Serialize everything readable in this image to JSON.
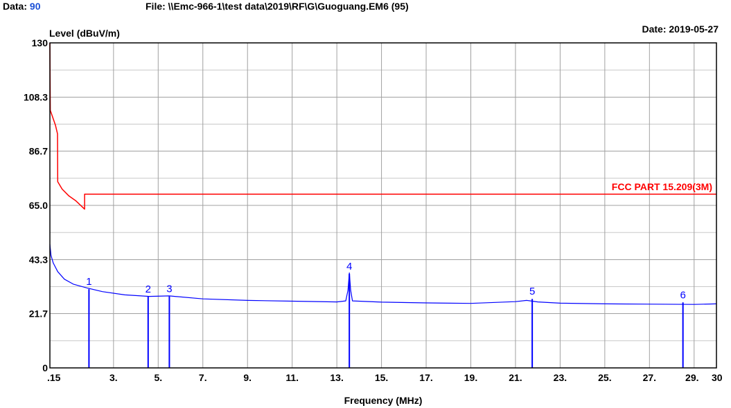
{
  "header": {
    "data_label": "Data:",
    "data_value": "90",
    "file_text": "File: \\\\Emc-966-1\\test data\\2019\\RF\\G\\Guoguang.EM6  (95)",
    "date_text": "Date: 2019-05-27"
  },
  "colors": {
    "limit": "#ff0000",
    "trace": "#0000ff",
    "grid": "#a0a0a0",
    "accent": "#1a4fd6"
  },
  "chart_data": {
    "type": "line",
    "ylabel": "Level (dBuV/m)",
    "xlabel": "Frequency (MHz)",
    "xlim": [
      0.15,
      30
    ],
    "ylim": [
      0,
      130
    ],
    "grid": true,
    "x_ticks": [
      {
        "value": 0.15,
        "label": ".15"
      },
      {
        "value": 3,
        "label": "3."
      },
      {
        "value": 5,
        "label": "5."
      },
      {
        "value": 7,
        "label": "7."
      },
      {
        "value": 9,
        "label": "9."
      },
      {
        "value": 11,
        "label": "11."
      },
      {
        "value": 13,
        "label": "13."
      },
      {
        "value": 15,
        "label": "15."
      },
      {
        "value": 17,
        "label": "17."
      },
      {
        "value": 19,
        "label": "19."
      },
      {
        "value": 21,
        "label": "21."
      },
      {
        "value": 23,
        "label": "23."
      },
      {
        "value": 25,
        "label": "25."
      },
      {
        "value": 27,
        "label": "27."
      },
      {
        "value": 29,
        "label": "29."
      },
      {
        "value": 30,
        "label": "30"
      }
    ],
    "y_ticks": [
      {
        "value": 0,
        "label": "0"
      },
      {
        "value": 21.7,
        "label": "21.7"
      },
      {
        "value": 43.3,
        "label": "43.3"
      },
      {
        "value": 65.0,
        "label": "65.0"
      },
      {
        "value": 86.7,
        "label": "86.7"
      },
      {
        "value": 108.3,
        "label": "108.3"
      },
      {
        "value": 130,
        "label": "130"
      }
    ],
    "series": [
      {
        "name": "FCC PART 15.209(3M)",
        "points": [
          [
            0.15,
            130
          ],
          [
            0.17,
            103
          ],
          [
            0.4,
            97
          ],
          [
            0.49,
            93.6
          ],
          [
            0.5,
            74.5
          ],
          [
            0.7,
            71.5
          ],
          [
            1.0,
            68.8
          ],
          [
            1.3,
            66.9
          ],
          [
            1.705,
            63.5
          ],
          [
            1.705,
            69.5
          ],
          [
            30,
            69.5
          ]
        ]
      },
      {
        "points": [
          [
            0.15,
            49.5
          ],
          [
            0.2,
            45
          ],
          [
            0.3,
            42
          ],
          [
            0.5,
            38.5
          ],
          [
            0.8,
            35.5
          ],
          [
            1.2,
            33.5
          ],
          [
            1.8,
            32
          ],
          [
            2.5,
            30.5
          ],
          [
            3.5,
            29.2
          ],
          [
            4.6,
            28.6
          ],
          [
            5.5,
            28.8
          ],
          [
            7,
            27.6
          ],
          [
            9,
            27
          ],
          [
            11,
            26.7
          ],
          [
            13,
            26.4
          ],
          [
            13.4,
            26.8
          ],
          [
            13.5,
            31
          ],
          [
            13.56,
            38
          ],
          [
            13.62,
            31
          ],
          [
            13.7,
            26.8
          ],
          [
            15,
            26.3
          ],
          [
            17,
            26
          ],
          [
            19,
            25.8
          ],
          [
            21,
            26.5
          ],
          [
            21.5,
            27
          ],
          [
            22,
            26.4
          ],
          [
            23,
            25.9
          ],
          [
            25,
            25.6
          ],
          [
            27,
            25.5
          ],
          [
            29,
            25.4
          ],
          [
            30,
            25.6
          ]
        ]
      }
    ],
    "markers": [
      {
        "label": "1",
        "freq": 1.9,
        "level": 31.5
      },
      {
        "label": "2",
        "freq": 4.55,
        "level": 28.5
      },
      {
        "label": "3",
        "freq": 5.5,
        "level": 28.6
      },
      {
        "label": "4",
        "freq": 13.56,
        "level": 37.6
      },
      {
        "label": "5",
        "freq": 21.75,
        "level": 27.6
      },
      {
        "label": "6",
        "freq": 28.5,
        "level": 26.2
      }
    ]
  }
}
